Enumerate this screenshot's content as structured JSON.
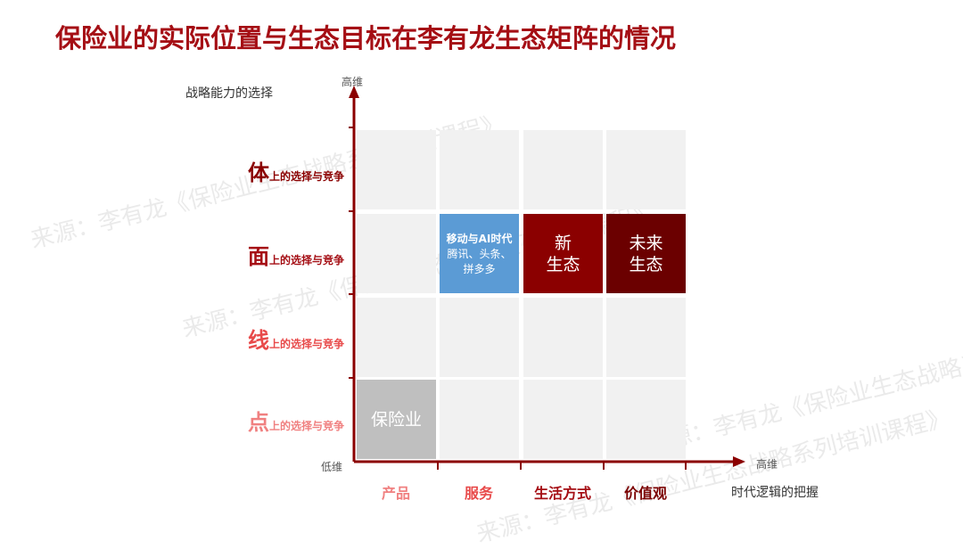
{
  "title": "保险业的实际位置与生态目标在李有龙生态矩阵的情况",
  "y_axis": {
    "name": "战略能力的选择",
    "high": "高维"
  },
  "x_axis": {
    "name": "时代逻辑的把握",
    "high": "高维",
    "low": "低维"
  },
  "rows": [
    {
      "key": "体",
      "suffix": "上的选择与竞争",
      "color": "#8b0000"
    },
    {
      "key": "面",
      "suffix": "上的选择与竞争",
      "color": "#a50f15"
    },
    {
      "key": "线",
      "suffix": "上的选择与竞争",
      "color": "#e84a4a"
    },
    {
      "key": "点",
      "suffix": "上的选择与竞争",
      "color": "#f08080"
    }
  ],
  "columns": [
    {
      "label": "产品",
      "color": "#f08080"
    },
    {
      "label": "服务",
      "color": "#e84a4a"
    },
    {
      "label": "生活方式",
      "color": "#a50f15"
    },
    {
      "label": "价值观",
      "color": "#7a0000"
    }
  ],
  "cells": {
    "mobile_ai": {
      "line1": "移动与AI时代",
      "line2": "腾讯、头条、",
      "line3": "拼多多",
      "color": "#5b9bd5"
    },
    "new_eco": {
      "line1": "新",
      "line2": "生态",
      "color": "#8b0000"
    },
    "future_eco": {
      "line1": "未来",
      "line2": "生态",
      "color": "#6b0000"
    },
    "insurance": {
      "label": "保险业",
      "color": "#bfbfbf"
    }
  },
  "watermark": "来源：李有龙《保险业生态战略系列培训课程》"
}
